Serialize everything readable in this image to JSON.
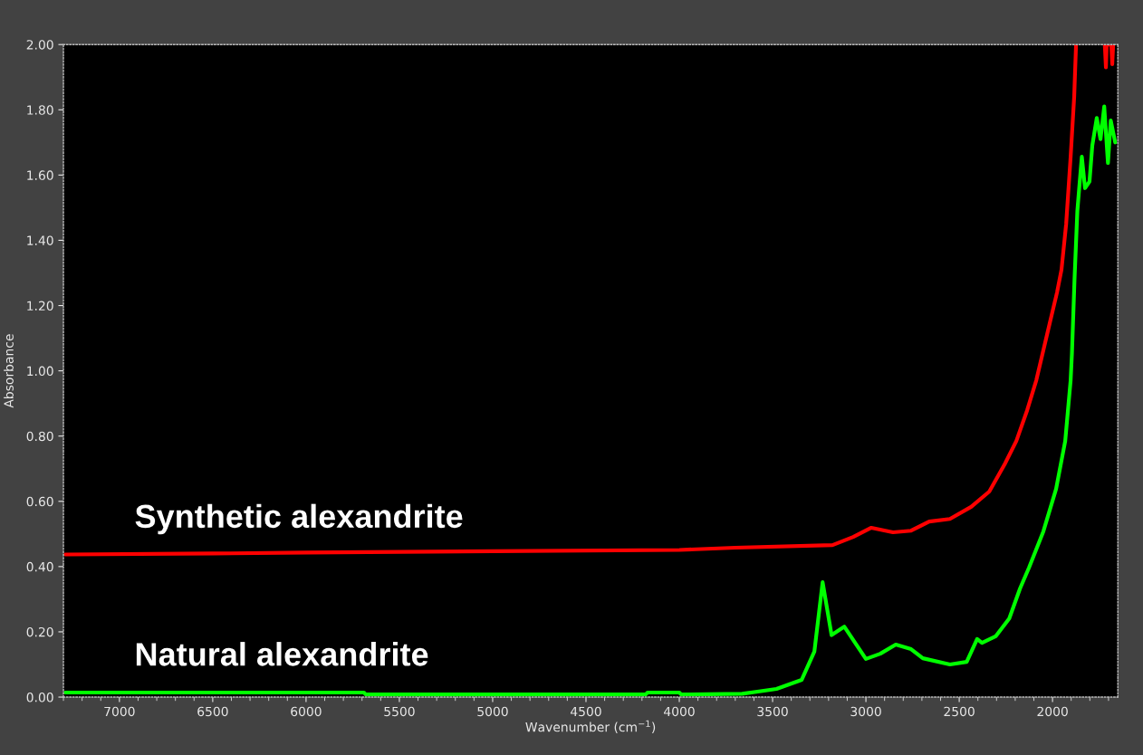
{
  "chart_data": {
    "type": "line",
    "xlabel": "Wavenumber (cm$^{−1}$)",
    "ylabel": "Absorbance",
    "xlim": [
      7300,
      1650
    ],
    "xticks": [
      7000,
      6500,
      6000,
      5500,
      5000,
      4500,
      4000,
      3500,
      3000,
      2500,
      2000
    ],
    "ylim": [
      0,
      2
    ],
    "yticks": [
      {
        "value": 0,
        "label": "0.00"
      },
      {
        "value": 0.2,
        "label": "0.20"
      },
      {
        "value": 0.4,
        "label": "0.40"
      },
      {
        "value": 0.6,
        "label": "0.60"
      },
      {
        "value": 0.8,
        "label": "0.80"
      },
      {
        "value": 1.0,
        "label": "1.00"
      },
      {
        "value": 1.2,
        "label": "1.20"
      },
      {
        "value": 1.4,
        "label": "1.40"
      },
      {
        "value": 1.6,
        "label": "1.60"
      },
      {
        "value": 1.8,
        "label": "1.80"
      },
      {
        "value": 2.0,
        "label": "2.00"
      }
    ],
    "grid": false,
    "legend": false,
    "marker": "none",
    "line_style": "solid",
    "series": [
      {
        "name": "Synthetic alexandrite",
        "color": "#ff0000",
        "x": [
          7290,
          6500,
          6000,
          5000,
          4000,
          3700,
          3179,
          3068,
          2971,
          2855,
          2758,
          2661,
          2550,
          2436,
          2339,
          2257,
          2194,
          2136,
          2087,
          2015,
          1976,
          1952,
          1927,
          1903,
          1884,
          1874,
          1800,
          1720,
          1714,
          1710,
          1685,
          1680,
          1675
        ],
        "values": [
          0.437,
          0.44,
          0.443,
          0.447,
          0.451,
          0.458,
          0.466,
          0.491,
          0.519,
          0.505,
          0.51,
          0.538,
          0.546,
          0.583,
          0.63,
          0.713,
          0.785,
          0.879,
          0.971,
          1.146,
          1.24,
          1.31,
          1.45,
          1.656,
          1.84,
          2.0,
          null,
          2.0,
          1.93,
          2.0,
          2.0,
          1.94,
          2.0
        ]
      },
      {
        "name": "Natural alexandrite",
        "color": "#00ff00",
        "x": [
          7290,
          5690,
          5680,
          4180,
          4170,
          4000,
          3990,
          3663,
          3479,
          3344,
          3276,
          3232,
          3184,
          3116,
          3000,
          2923,
          2840,
          2758,
          2695,
          2550,
          2460,
          2404,
          2378,
          2305,
          2232,
          2174,
          2126,
          2049,
          1981,
          1932,
          1903,
          1896,
          1882,
          1867,
          1857,
          1843,
          1826,
          1802,
          1787,
          1763,
          1743,
          1723,
          1703,
          1688,
          1664
        ],
        "values": [
          0.014,
          0.014,
          0.008,
          0.008,
          0.014,
          0.014,
          0.008,
          0.01,
          0.025,
          0.053,
          0.14,
          0.352,
          0.19,
          0.216,
          0.117,
          0.133,
          0.161,
          0.147,
          0.119,
          0.1,
          0.108,
          0.178,
          0.166,
          0.186,
          0.241,
          0.333,
          0.397,
          0.508,
          0.638,
          0.785,
          0.971,
          1.054,
          1.284,
          1.49,
          1.56,
          1.656,
          1.56,
          1.58,
          1.69,
          1.775,
          1.71,
          1.81,
          1.637,
          1.767,
          1.7
        ]
      }
    ]
  }
}
